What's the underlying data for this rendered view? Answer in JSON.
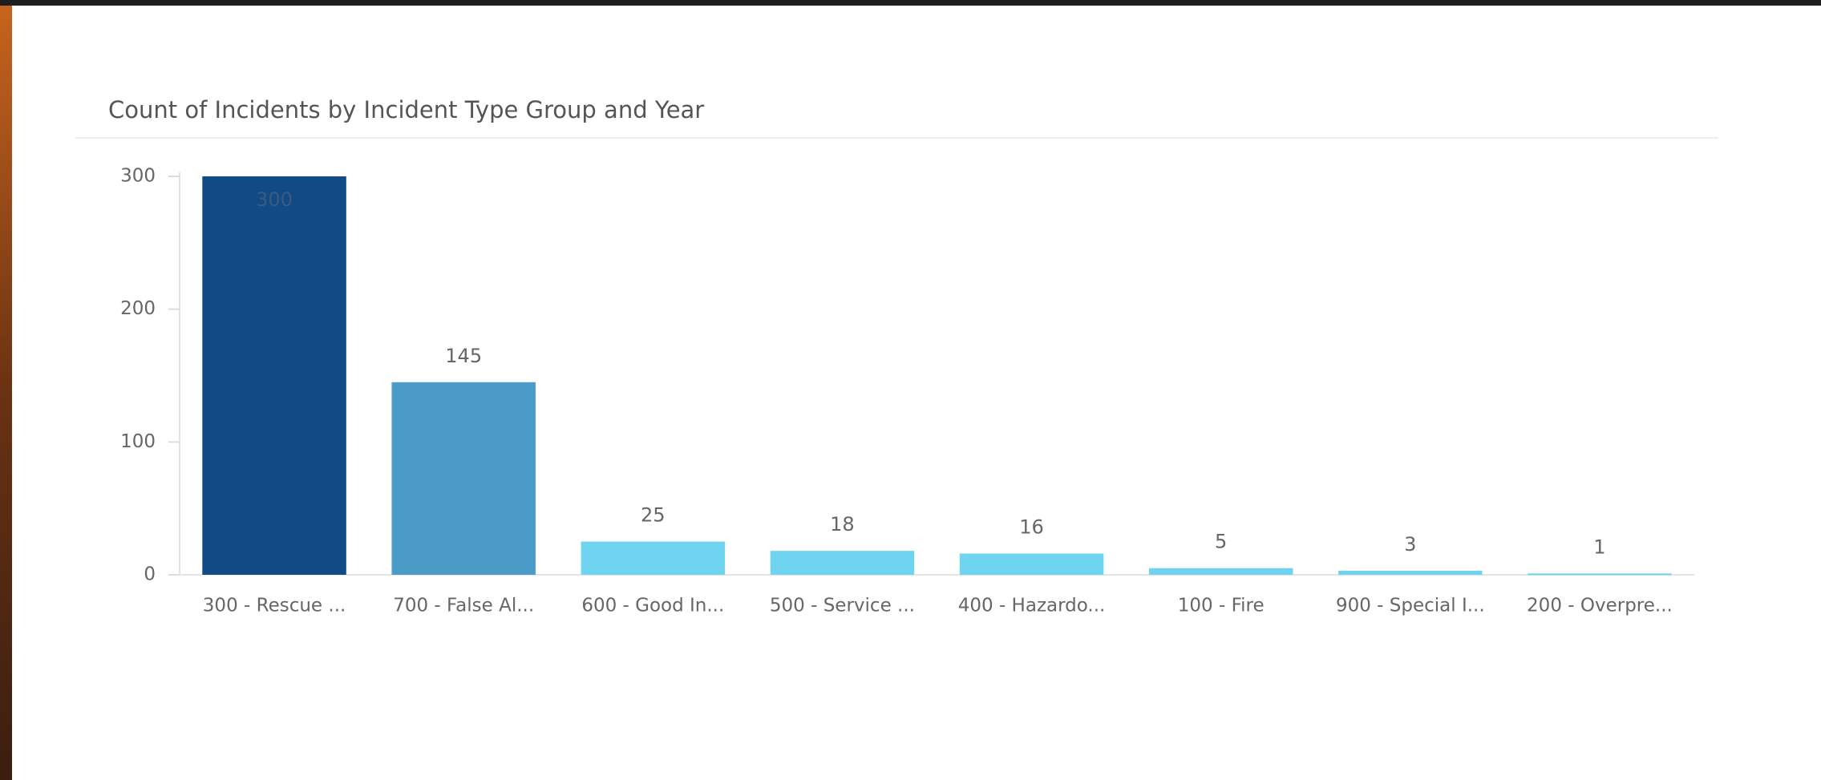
{
  "chart_data": {
    "type": "bar",
    "title": "Count of Incidents by Incident Type Group and Year",
    "categories": [
      "300 - Rescue ...",
      "700 - False Al...",
      "600 - Good In...",
      "500 - Service ...",
      "400 - Hazardo...",
      "100 - Fire",
      "900 - Special I...",
      "200 - Overpre..."
    ],
    "values": [
      300,
      145,
      25,
      18,
      16,
      5,
      3,
      1
    ],
    "colors": [
      "#124a85",
      "#4a9bc8",
      "#6fd4f0",
      "#6fd4f0",
      "#6fd4f0",
      "#6fd4f0",
      "#6fd4f0",
      "#6fd4f0"
    ],
    "ylim": [
      0,
      300
    ],
    "yticks": [
      0,
      100,
      200,
      300
    ],
    "grid": false
  }
}
